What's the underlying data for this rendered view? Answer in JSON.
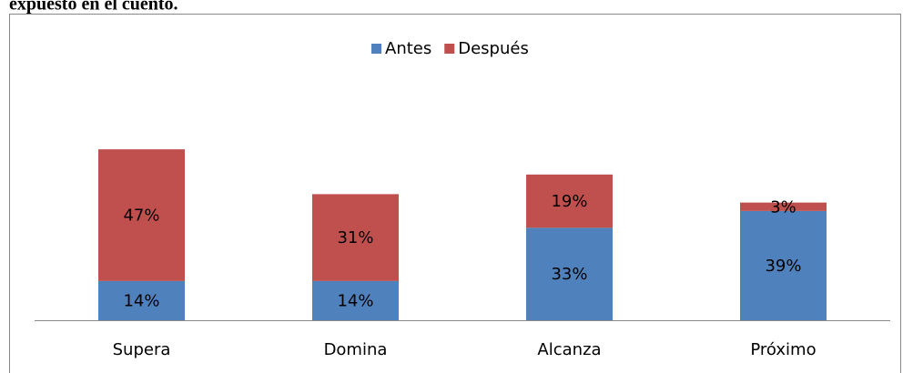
{
  "chart_data": {
    "type": "stacked_bar",
    "title": "expuesto en el cuento.",
    "categories": [
      "Supera",
      "Domina",
      "Alcanza",
      "Próximo"
    ],
    "series": [
      {
        "name": "Antes",
        "color": "#4f81bd",
        "values": [
          14,
          14,
          33,
          39
        ],
        "value_labels": [
          "14%",
          "14%",
          "33%",
          "39%"
        ]
      },
      {
        "name": "Después",
        "color": "#c0504d",
        "values": [
          47,
          31,
          19,
          3
        ],
        "value_labels": [
          "47%",
          "31%",
          "19%",
          "3%"
        ]
      }
    ],
    "legend": "top"
  }
}
